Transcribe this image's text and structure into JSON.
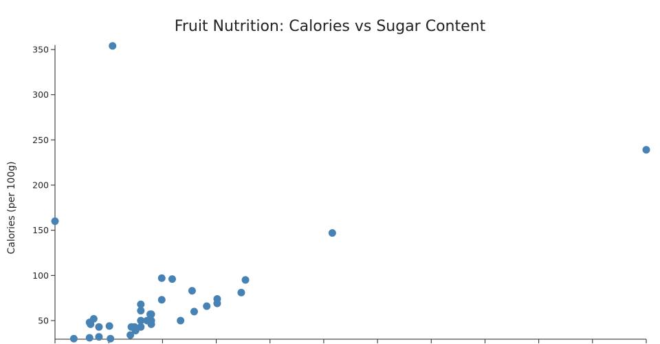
{
  "chart_data": {
    "type": "scatter",
    "title": "Fruit Nutrition: Calories vs Sugar Content",
    "xlabel": "",
    "ylabel": "Calories (per 100g)",
    "xlim": [
      0,
      56.5
    ],
    "ylim": [
      30,
      355
    ],
    "y_ticks": [
      50,
      100,
      150,
      200,
      250,
      300,
      350
    ],
    "x_tick_count": 12,
    "point_color": "#4682b4",
    "grid": false,
    "points": [
      {
        "x": 0.0,
        "y": 160
      },
      {
        "x": 1.8,
        "y": 30
      },
      {
        "x": 3.3,
        "y": 48
      },
      {
        "x": 3.4,
        "y": 46
      },
      {
        "x": 3.3,
        "y": 31
      },
      {
        "x": 3.7,
        "y": 52
      },
      {
        "x": 4.2,
        "y": 43
      },
      {
        "x": 4.2,
        "y": 32
      },
      {
        "x": 5.2,
        "y": 44
      },
      {
        "x": 5.3,
        "y": 30
      },
      {
        "x": 5.5,
        "y": 354
      },
      {
        "x": 7.2,
        "y": 34
      },
      {
        "x": 7.3,
        "y": 43
      },
      {
        "x": 7.6,
        "y": 43
      },
      {
        "x": 7.7,
        "y": 39
      },
      {
        "x": 8.2,
        "y": 43
      },
      {
        "x": 8.2,
        "y": 50
      },
      {
        "x": 8.2,
        "y": 61
      },
      {
        "x": 8.2,
        "y": 68
      },
      {
        "x": 8.8,
        "y": 50
      },
      {
        "x": 9.1,
        "y": 57
      },
      {
        "x": 9.2,
        "y": 50
      },
      {
        "x": 9.2,
        "y": 46
      },
      {
        "x": 9.2,
        "y": 57
      },
      {
        "x": 10.2,
        "y": 97
      },
      {
        "x": 10.2,
        "y": 73
      },
      {
        "x": 11.2,
        "y": 96
      },
      {
        "x": 12.0,
        "y": 50
      },
      {
        "x": 13.1,
        "y": 83
      },
      {
        "x": 13.3,
        "y": 60
      },
      {
        "x": 14.5,
        "y": 66
      },
      {
        "x": 15.5,
        "y": 74
      },
      {
        "x": 15.5,
        "y": 69
      },
      {
        "x": 17.8,
        "y": 81
      },
      {
        "x": 18.2,
        "y": 95
      },
      {
        "x": 26.5,
        "y": 147
      },
      {
        "x": 56.5,
        "y": 239
      }
    ]
  }
}
